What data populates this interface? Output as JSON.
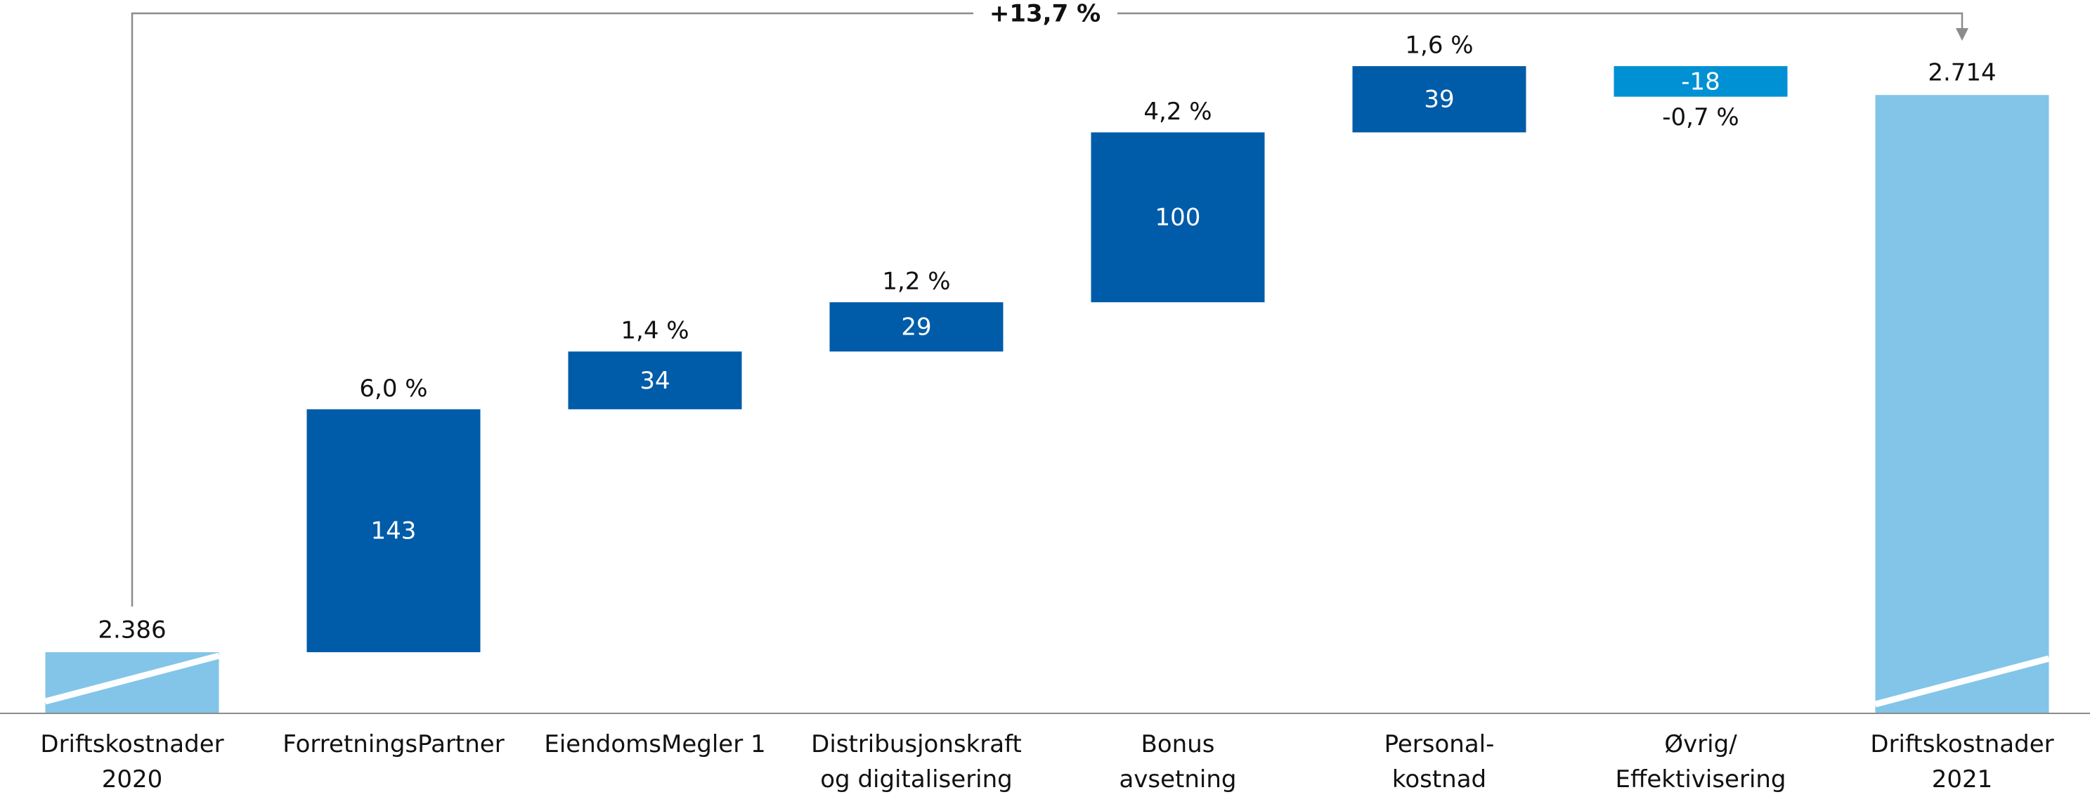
{
  "chart_data": {
    "type": "waterfall",
    "total_change_label": "+13,7 %",
    "categories": [
      [
        "Driftskostnader",
        "2020"
      ],
      [
        "ForretningsPartner"
      ],
      [
        "EiendomsMegler 1"
      ],
      [
        "Distribusjonskraft",
        "og digitalisering"
      ],
      [
        "Bonus",
        "avsetning"
      ],
      [
        "Personal-",
        "kostnad"
      ],
      [
        "Øvrig/",
        "Effektivisering"
      ],
      [
        "Driftskostnader",
        "2021"
      ]
    ],
    "kinds": [
      "total",
      "delta",
      "delta",
      "delta",
      "delta",
      "delta",
      "delta",
      "total"
    ],
    "values": [
      2386,
      143,
      34,
      29,
      100,
      39,
      -18,
      2714
    ],
    "value_labels": [
      "2.386",
      "143",
      "34",
      "29",
      "100",
      "39",
      "-18",
      "2.714"
    ],
    "change_labels": [
      null,
      "6,0 %",
      "1,4 %",
      "1,2 %",
      "4,2 %",
      "1,6 %",
      "-0,7 %",
      null
    ],
    "colors": {
      "total": "#82c5e8",
      "increase": "#005ca8",
      "decrease": "#0090d4"
    },
    "ylim": [
      2350,
      2760
    ]
  }
}
